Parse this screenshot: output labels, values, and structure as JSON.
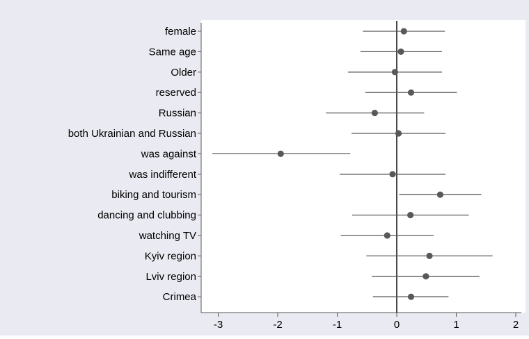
{
  "chart_data": {
    "type": "coefficient-plot",
    "title": "",
    "xlabel": "",
    "ylabel": "",
    "xlim": [
      -3.3,
      2.05
    ],
    "x_ticks": [
      -3,
      -2,
      -1,
      0,
      1,
      2
    ],
    "reference_line": 0,
    "grid": false,
    "legend": "none",
    "colors": {
      "outer_background": "#eaeaf2",
      "plot_background": "#ffffff",
      "marker": "#595959",
      "interval": "#595959",
      "reference_line": "#1a1a1a",
      "axis": "#595959"
    },
    "categories": [
      "female",
      "Same age",
      "Older",
      "reserved",
      "Russian",
      "both Ukrainian and Russian",
      "was against",
      "was indifferent",
      "biking and tourism",
      "dancing and clubbing",
      "watching TV",
      "Kyiv region",
      "Lviv region",
      "Crimea"
    ],
    "estimates": [
      0.12,
      0.07,
      -0.03,
      0.24,
      -0.37,
      0.03,
      -1.95,
      -0.07,
      0.73,
      0.23,
      -0.16,
      0.55,
      0.49,
      0.24
    ],
    "ci_low": [
      -0.57,
      -0.61,
      -0.82,
      -0.53,
      -1.19,
      -0.76,
      -3.1,
      -0.96,
      0.04,
      -0.75,
      -0.94,
      -0.51,
      -0.42,
      -0.4
    ],
    "ci_high": [
      0.81,
      0.76,
      0.76,
      1.01,
      0.46,
      0.82,
      -0.78,
      0.82,
      1.42,
      1.21,
      0.62,
      1.61,
      1.39,
      0.87
    ]
  }
}
